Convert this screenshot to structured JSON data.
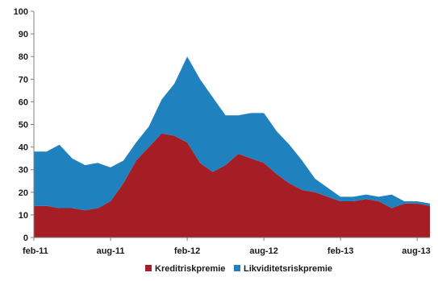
{
  "chart_data": {
    "type": "area",
    "stacked": true,
    "ylim": [
      0,
      100
    ],
    "yticks": [
      0,
      10,
      20,
      30,
      40,
      50,
      60,
      70,
      80,
      90,
      100
    ],
    "ytick_labels": [
      "0",
      "10",
      "20",
      "30",
      "40",
      "50",
      "60",
      "70",
      "80",
      "90",
      "100"
    ],
    "xlim": [
      "2011-02",
      "2013-09"
    ],
    "xticks": [
      "2011-02",
      "2011-08",
      "2012-02",
      "2012-08",
      "2013-02",
      "2013-08"
    ],
    "xtick_labels": [
      "feb-11",
      "aug-11",
      "feb-12",
      "aug-12",
      "feb-13",
      "aug-13"
    ],
    "grid": false,
    "legend_position": "bottom-center",
    "colors": {
      "Kreditriskpremie": "#a51e26",
      "Likviditetsriskpremie": "#1f82bf"
    },
    "x": [
      "2011-02",
      "2011-03",
      "2011-04",
      "2011-05",
      "2011-06",
      "2011-07",
      "2011-08",
      "2011-09",
      "2011-10",
      "2011-11",
      "2011-12",
      "2012-01",
      "2012-02",
      "2012-03",
      "2012-04",
      "2012-05",
      "2012-06",
      "2012-07",
      "2012-08",
      "2012-09",
      "2012-10",
      "2012-11",
      "2012-12",
      "2013-01",
      "2013-02",
      "2013-03",
      "2013-04",
      "2013-05",
      "2013-06",
      "2013-07",
      "2013-08",
      "2013-09"
    ],
    "series": [
      {
        "name": "Kreditriskpremie",
        "values": [
          14,
          14,
          13,
          13,
          12,
          13,
          16,
          24,
          34,
          40,
          46,
          45,
          42,
          33,
          29,
          32,
          37,
          35,
          33,
          28,
          24,
          21,
          20,
          18,
          16,
          16,
          17,
          16,
          13,
          15,
          15,
          14
        ]
      },
      {
        "name": "Likviditetsriskpremie",
        "values": [
          24,
          24,
          28,
          22,
          20,
          20,
          15,
          10,
          8,
          9,
          15,
          23,
          38,
          37,
          33,
          22,
          17,
          20,
          22,
          19,
          17,
          13,
          6,
          4,
          2,
          2,
          2,
          2,
          6,
          1,
          1,
          1
        ]
      }
    ]
  }
}
